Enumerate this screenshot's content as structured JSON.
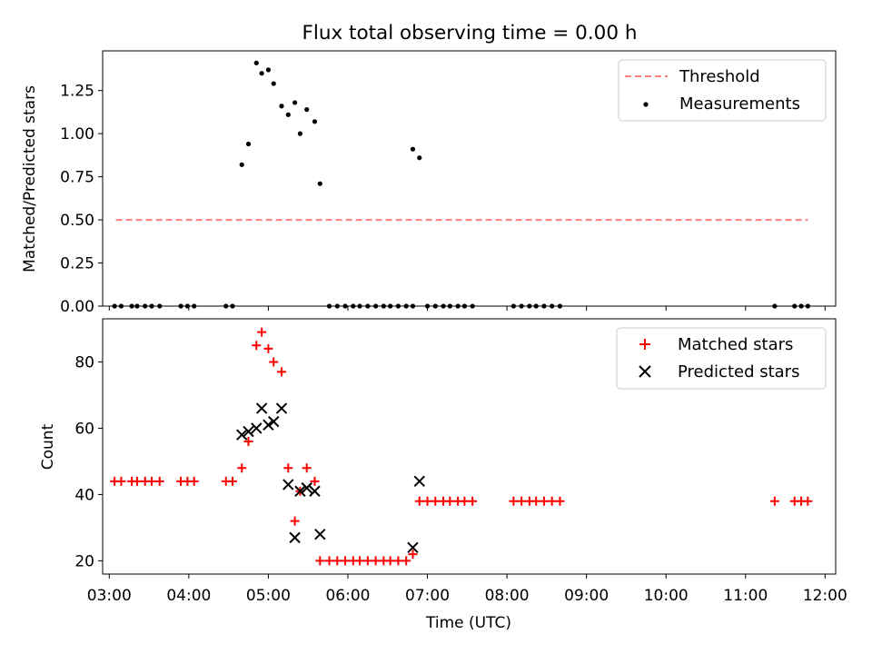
{
  "title": "Flux total observing time = 0.00 h",
  "chart_data": [
    {
      "type": "scatter",
      "ylabel": "Matched/Predicted stars",
      "xlabel": "",
      "xlim": [
        "02:55",
        "12:08"
      ],
      "ylim": [
        0,
        1.48
      ],
      "grid": false,
      "legend_position": "top-right",
      "xticks": [
        "03:00",
        "04:00",
        "05:00",
        "06:00",
        "07:00",
        "08:00",
        "09:00",
        "10:00",
        "11:00",
        "12:00"
      ],
      "yticks": [
        "0.00",
        "0.25",
        "0.50",
        "0.75",
        "1.00",
        "1.25"
      ],
      "threshold": {
        "name": "Threshold",
        "y": 0.5,
        "x_start": "03:05",
        "x_end": "11:47",
        "color": "#ff7f7f"
      },
      "series": [
        {
          "name": "Measurements",
          "color": "#000000",
          "points": [
            {
              "x": "03:04",
              "y": 0
            },
            {
              "x": "03:09",
              "y": 0
            },
            {
              "x": "03:17",
              "y": 0
            },
            {
              "x": "03:21",
              "y": 0
            },
            {
              "x": "03:27",
              "y": 0
            },
            {
              "x": "03:32",
              "y": 0
            },
            {
              "x": "03:38",
              "y": 0
            },
            {
              "x": "03:54",
              "y": 0
            },
            {
              "x": "03:59",
              "y": 0
            },
            {
              "x": "04:04",
              "y": 0
            },
            {
              "x": "04:28",
              "y": 0
            },
            {
              "x": "04:33",
              "y": 0
            },
            {
              "x": "04:40",
              "y": 0.82
            },
            {
              "x": "04:45",
              "y": 0.94
            },
            {
              "x": "04:51",
              "y": 1.41
            },
            {
              "x": "04:55",
              "y": 1.35
            },
            {
              "x": "05:00",
              "y": 1.37
            },
            {
              "x": "05:04",
              "y": 1.29
            },
            {
              "x": "05:10",
              "y": 1.16
            },
            {
              "x": "05:15",
              "y": 1.11
            },
            {
              "x": "05:20",
              "y": 1.18
            },
            {
              "x": "05:24",
              "y": 1.0
            },
            {
              "x": "05:29",
              "y": 1.14
            },
            {
              "x": "05:35",
              "y": 1.07
            },
            {
              "x": "05:39",
              "y": 0.71
            },
            {
              "x": "05:46",
              "y": 0
            },
            {
              "x": "05:52",
              "y": 0
            },
            {
              "x": "05:58",
              "y": 0
            },
            {
              "x": "06:04",
              "y": 0
            },
            {
              "x": "06:09",
              "y": 0
            },
            {
              "x": "06:15",
              "y": 0
            },
            {
              "x": "06:21",
              "y": 0
            },
            {
              "x": "06:27",
              "y": 0
            },
            {
              "x": "06:32",
              "y": 0
            },
            {
              "x": "06:38",
              "y": 0
            },
            {
              "x": "06:44",
              "y": 0
            },
            {
              "x": "06:49",
              "y": 0
            },
            {
              "x": "06:49",
              "y": 0.91
            },
            {
              "x": "06:54",
              "y": 0.86
            },
            {
              "x": "07:00",
              "y": 0
            },
            {
              "x": "07:06",
              "y": 0
            },
            {
              "x": "07:12",
              "y": 0
            },
            {
              "x": "07:17",
              "y": 0
            },
            {
              "x": "07:23",
              "y": 0
            },
            {
              "x": "07:28",
              "y": 0
            },
            {
              "x": "07:34",
              "y": 0
            },
            {
              "x": "08:05",
              "y": 0
            },
            {
              "x": "08:11",
              "y": 0
            },
            {
              "x": "08:17",
              "y": 0
            },
            {
              "x": "08:22",
              "y": 0
            },
            {
              "x": "08:28",
              "y": 0
            },
            {
              "x": "08:34",
              "y": 0
            },
            {
              "x": "08:40",
              "y": 0
            },
            {
              "x": "11:22",
              "y": 0
            },
            {
              "x": "11:37",
              "y": 0
            },
            {
              "x": "11:42",
              "y": 0
            },
            {
              "x": "11:47",
              "y": 0
            }
          ]
        }
      ]
    },
    {
      "type": "scatter",
      "ylabel": "Count",
      "xlabel": "Time (UTC)",
      "xlim": [
        "02:55",
        "12:08"
      ],
      "ylim": [
        16,
        93
      ],
      "grid": false,
      "legend_position": "top-right",
      "xticks": [
        "03:00",
        "04:00",
        "05:00",
        "06:00",
        "07:00",
        "08:00",
        "09:00",
        "10:00",
        "11:00",
        "12:00"
      ],
      "yticks": [
        "20",
        "40",
        "60",
        "80"
      ],
      "series": [
        {
          "name": "Matched stars",
          "marker": "+",
          "color": "#ff0000",
          "points": [
            {
              "x": "03:04",
              "y": 44
            },
            {
              "x": "03:09",
              "y": 44
            },
            {
              "x": "03:17",
              "y": 44
            },
            {
              "x": "03:21",
              "y": 44
            },
            {
              "x": "03:27",
              "y": 44
            },
            {
              "x": "03:32",
              "y": 44
            },
            {
              "x": "03:38",
              "y": 44
            },
            {
              "x": "03:54",
              "y": 44
            },
            {
              "x": "03:59",
              "y": 44
            },
            {
              "x": "04:04",
              "y": 44
            },
            {
              "x": "04:28",
              "y": 44
            },
            {
              "x": "04:33",
              "y": 44
            },
            {
              "x": "04:40",
              "y": 48
            },
            {
              "x": "04:45",
              "y": 56
            },
            {
              "x": "04:51",
              "y": 85
            },
            {
              "x": "04:55",
              "y": 89
            },
            {
              "x": "05:00",
              "y": 84
            },
            {
              "x": "05:04",
              "y": 80
            },
            {
              "x": "05:10",
              "y": 77
            },
            {
              "x": "05:15",
              "y": 48
            },
            {
              "x": "05:20",
              "y": 32
            },
            {
              "x": "05:24",
              "y": 41
            },
            {
              "x": "05:29",
              "y": 48
            },
            {
              "x": "05:35",
              "y": 44
            },
            {
              "x": "05:39",
              "y": 20
            },
            {
              "x": "05:46",
              "y": 20
            },
            {
              "x": "05:52",
              "y": 20
            },
            {
              "x": "05:58",
              "y": 20
            },
            {
              "x": "06:04",
              "y": 20
            },
            {
              "x": "06:09",
              "y": 20
            },
            {
              "x": "06:15",
              "y": 20
            },
            {
              "x": "06:21",
              "y": 20
            },
            {
              "x": "06:27",
              "y": 20
            },
            {
              "x": "06:32",
              "y": 20
            },
            {
              "x": "06:38",
              "y": 20
            },
            {
              "x": "06:44",
              "y": 20
            },
            {
              "x": "06:49",
              "y": 22
            },
            {
              "x": "06:54",
              "y": 38
            },
            {
              "x": "07:00",
              "y": 38
            },
            {
              "x": "07:06",
              "y": 38
            },
            {
              "x": "07:12",
              "y": 38
            },
            {
              "x": "07:17",
              "y": 38
            },
            {
              "x": "07:23",
              "y": 38
            },
            {
              "x": "07:28",
              "y": 38
            },
            {
              "x": "07:34",
              "y": 38
            },
            {
              "x": "08:05",
              "y": 38
            },
            {
              "x": "08:11",
              "y": 38
            },
            {
              "x": "08:17",
              "y": 38
            },
            {
              "x": "08:22",
              "y": 38
            },
            {
              "x": "08:28",
              "y": 38
            },
            {
              "x": "08:34",
              "y": 38
            },
            {
              "x": "08:40",
              "y": 38
            },
            {
              "x": "11:22",
              "y": 38
            },
            {
              "x": "11:37",
              "y": 38
            },
            {
              "x": "11:42",
              "y": 38
            },
            {
              "x": "11:47",
              "y": 38
            }
          ]
        },
        {
          "name": "Predicted stars",
          "marker": "x",
          "color": "#000000",
          "points": [
            {
              "x": "04:40",
              "y": 58
            },
            {
              "x": "04:45",
              "y": 59
            },
            {
              "x": "04:51",
              "y": 60
            },
            {
              "x": "04:55",
              "y": 66
            },
            {
              "x": "05:00",
              "y": 61
            },
            {
              "x": "05:04",
              "y": 62
            },
            {
              "x": "05:10",
              "y": 66
            },
            {
              "x": "05:15",
              "y": 43
            },
            {
              "x": "05:20",
              "y": 27
            },
            {
              "x": "05:24",
              "y": 41
            },
            {
              "x": "05:29",
              "y": 42
            },
            {
              "x": "05:35",
              "y": 41
            },
            {
              "x": "05:39",
              "y": 28
            },
            {
              "x": "06:49",
              "y": 24
            },
            {
              "x": "06:54",
              "y": 44
            }
          ]
        }
      ]
    }
  ]
}
